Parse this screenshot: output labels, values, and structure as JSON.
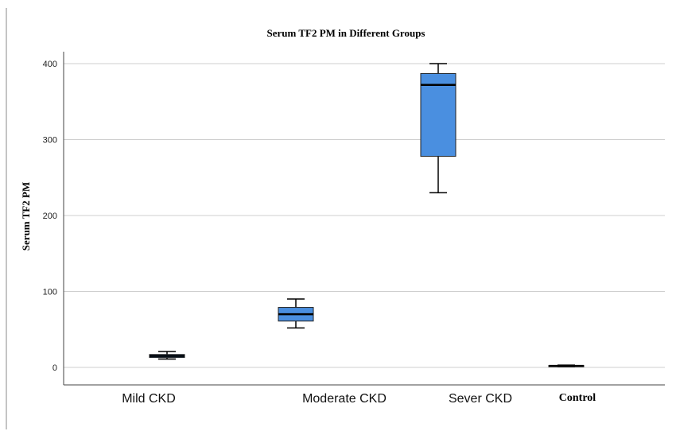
{
  "chart_data": {
    "type": "box",
    "title": "Serum TF2 PM in Different Groups",
    "xlabel": "",
    "ylabel": "Serum TF2 PM",
    "ylim": [
      -22,
      410
    ],
    "yticks": [
      0,
      100,
      200,
      300,
      400
    ],
    "grid": "horizontal",
    "categories": [
      "Mild CKD",
      "Moderate CKD",
      "Sever CKD",
      "Control"
    ],
    "boxes": [
      {
        "category": "Mild CKD",
        "min": 11,
        "q1": 13,
        "median": 15,
        "q3": 17,
        "max": 21
      },
      {
        "category": "Moderate CKD",
        "min": 52,
        "q1": 61,
        "median": 70,
        "q3": 79,
        "max": 90
      },
      {
        "category": "Sever CKD",
        "min": 230,
        "q1": 278,
        "median": 372,
        "q3": 387,
        "max": 400
      },
      {
        "category": "Control",
        "min": 1,
        "q1": 1.5,
        "median": 2,
        "q3": 2.5,
        "max": 3
      }
    ],
    "box_color": "#4a8fe0",
    "median_color": "#000000"
  }
}
